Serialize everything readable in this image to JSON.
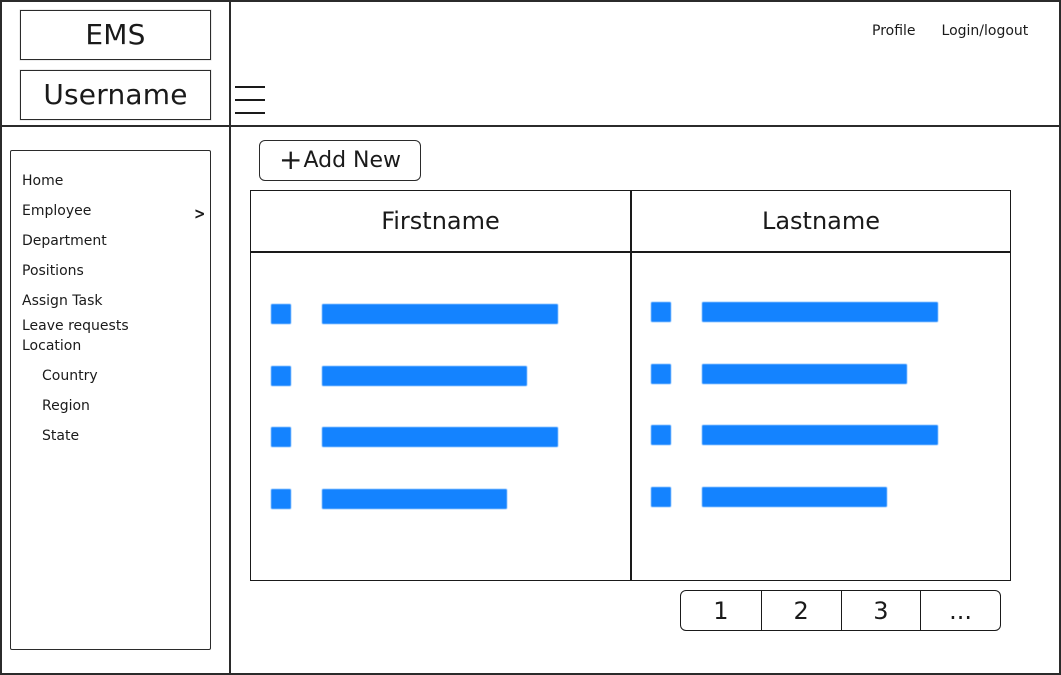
{
  "header": {
    "app_title": "EMS",
    "username": "Username",
    "links": [
      {
        "label": "Profile"
      },
      {
        "label": "Login/logout"
      }
    ],
    "menu_icon": "hamburger-icon"
  },
  "sidebar": {
    "items": [
      {
        "label": "Home"
      },
      {
        "label": "Employee",
        "has_chevron": true,
        "chevron": ">"
      },
      {
        "label": "Department"
      },
      {
        "label": "Positions"
      },
      {
        "label": "Assign Task"
      },
      {
        "label": "Leave requests"
      },
      {
        "label": "Location"
      }
    ],
    "subitems": [
      {
        "label": "Country"
      },
      {
        "label": "Region"
      },
      {
        "label": "State"
      }
    ]
  },
  "main": {
    "add_button": {
      "icon": "+",
      "label": "Add New"
    },
    "table": {
      "columns": [
        {
          "label": "Firstname"
        },
        {
          "label": "Lastname"
        }
      ]
    },
    "pagination": {
      "pages": [
        "1",
        "2",
        "3",
        "..."
      ]
    }
  },
  "colors": {
    "accent": "#1483ff",
    "line": "#2b2b2b",
    "text": "#1a1a1a",
    "background": "#ffffff"
  }
}
